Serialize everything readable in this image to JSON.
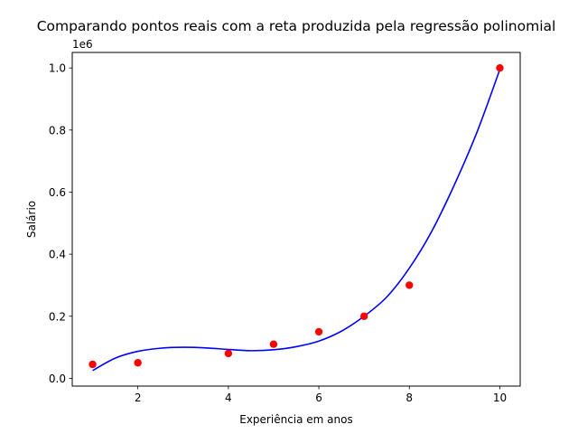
{
  "chart_data": {
    "type": "scatter",
    "title": "Comparando pontos reais com a reta produzida pela regressão polinomial",
    "xlabel": "Experiência em anos",
    "ylabel": "Salário",
    "y_offset_label": "1e6",
    "xlim": [
      0.55,
      10.45
    ],
    "ylim": [
      -0.025,
      1.05
    ],
    "x_ticks": [
      2,
      4,
      6,
      8,
      10
    ],
    "x_tick_labels": [
      "2",
      "4",
      "6",
      "8",
      "10"
    ],
    "y_ticks": [
      0.0,
      0.2,
      0.4,
      0.6,
      0.8,
      1.0
    ],
    "y_tick_labels": [
      "0.0",
      "0.2",
      "0.4",
      "0.6",
      "0.8",
      "1.0"
    ],
    "grid": false,
    "series": [
      {
        "kind": "scatter",
        "color": "#ff0000",
        "x": [
          1,
          2,
          4,
          5,
          6,
          7,
          8,
          10
        ],
        "y": [
          0.045,
          0.05,
          0.08,
          0.11,
          0.15,
          0.2,
          0.3,
          1.0
        ]
      },
      {
        "kind": "line",
        "color": "#0000ff",
        "x": [
          1,
          1.5,
          2,
          2.5,
          3,
          3.5,
          4,
          4.5,
          5,
          5.5,
          6,
          6.5,
          7,
          7.5,
          8,
          8.5,
          9,
          9.5,
          10
        ],
        "y": [
          0.025,
          0.065,
          0.087,
          0.097,
          0.1,
          0.098,
          0.093,
          0.089,
          0.092,
          0.102,
          0.12,
          0.152,
          0.2,
          0.262,
          0.355,
          0.475,
          0.625,
          0.795,
          0.995
        ]
      }
    ]
  }
}
